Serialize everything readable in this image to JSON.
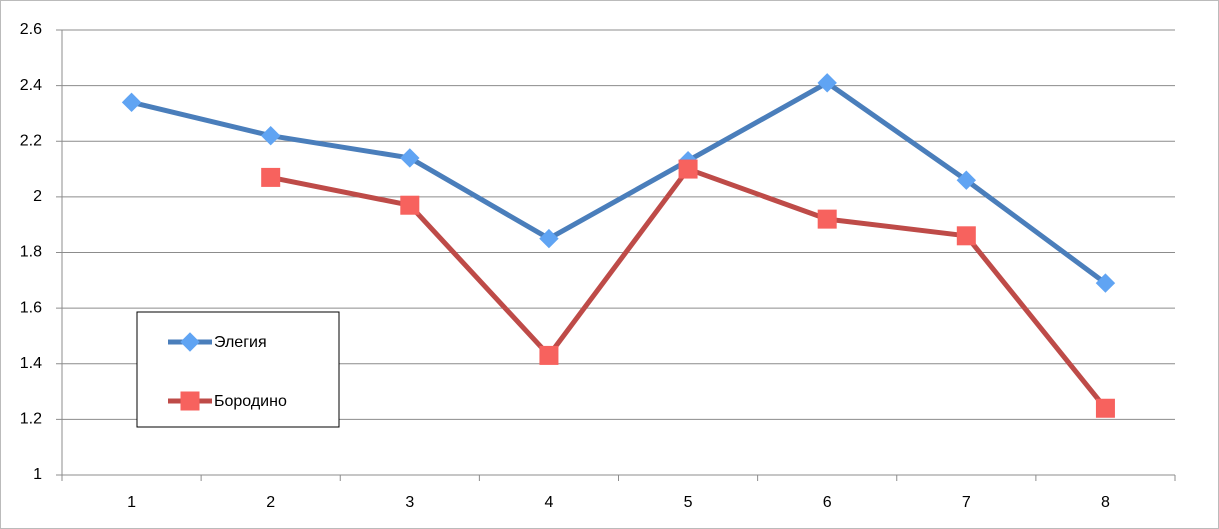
{
  "chart_data": {
    "type": "line",
    "categories": [
      "1",
      "2",
      "3",
      "4",
      "5",
      "6",
      "7",
      "8"
    ],
    "series": [
      {
        "name": "Элегия",
        "color": "#4a7ebb",
        "marker": "diamond",
        "values": [
          2.34,
          2.22,
          2.14,
          1.85,
          2.13,
          2.41,
          2.06,
          1.69
        ]
      },
      {
        "name": "Бородино",
        "color": "#be4b48",
        "marker": "square",
        "values": [
          null,
          2.07,
          1.97,
          1.43,
          2.1,
          1.92,
          1.86,
          1.24
        ]
      }
    ],
    "ylim": [
      1,
      2.6
    ],
    "yticks": [
      1,
      1.2,
      1.4,
      1.6,
      1.8,
      2,
      2.2,
      2.4,
      2.6
    ],
    "grid": true,
    "legend": "left"
  }
}
